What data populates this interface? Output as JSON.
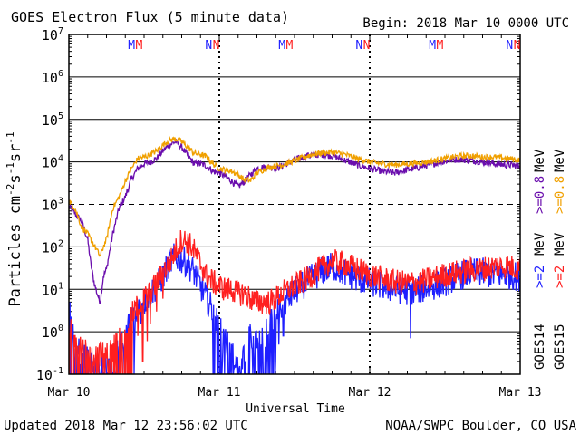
{
  "header": {
    "title": "GOES Electron Flux (5 minute data)",
    "begin": "Begin: 2018 Mar 10 0000 UTC"
  },
  "footer": {
    "updated": "Updated 2018 Mar 12 23:56:02 UTC",
    "credit": "NOAA/SWPC Boulder, CO USA"
  },
  "colors": {
    "goes14_high": "#1f1fff",
    "goes15_high": "#ff1f1f",
    "goes14_low": "#6a0dad",
    "goes15_low": "#f0a000"
  },
  "chart_data": {
    "type": "line",
    "xlabel": "Universal Time",
    "ylabel_parts": {
      "base": "Particles cm",
      "exp1": "-2",
      "mid1": "s",
      "exp2": "-1",
      "mid2": "sr",
      "exp3": "-1"
    },
    "yscale": "log",
    "ylim": [
      0.1,
      10000000
    ],
    "xlim": [
      0,
      72
    ],
    "x_unit": "hours since 2018 Mar 10 0000 UTC",
    "x_ticks": [
      {
        "x": 0,
        "label": "Mar 10"
      },
      {
        "x": 24,
        "label": "Mar 11"
      },
      {
        "x": 48,
        "label": "Mar 12"
      },
      {
        "x": 72,
        "label": "Mar 13"
      }
    ],
    "y_ticks": [
      {
        "exp": -1,
        "base": "10",
        "sup": "-1"
      },
      {
        "exp": 0,
        "base": "10",
        "sup": "0"
      },
      {
        "exp": 1,
        "base": "10",
        "sup": "1"
      },
      {
        "exp": 2,
        "base": "10",
        "sup": "2"
      },
      {
        "exp": 3,
        "base": "10",
        "sup": "3"
      },
      {
        "exp": 4,
        "base": "10",
        "sup": "4"
      },
      {
        "exp": 5,
        "base": "10",
        "sup": "5"
      },
      {
        "exp": 6,
        "base": "10",
        "sup": "6"
      },
      {
        "exp": 7,
        "base": "10",
        "sup": "7"
      }
    ],
    "threshold_line": 1000,
    "marker_rows": [
      {
        "label": "M",
        "color": "#1f1fff",
        "x": [
          10.0,
          34.0,
          58.0
        ]
      },
      {
        "label": "M",
        "color": "#ff1f1f",
        "x": [
          11.2,
          35.2,
          59.2
        ]
      },
      {
        "label": "N",
        "color": "#1f1fff",
        "x": [
          22.3,
          46.3,
          70.3
        ]
      },
      {
        "label": "N",
        "color": "#ff1f1f",
        "x": [
          23.5,
          47.5,
          71.5
        ]
      }
    ],
    "legend": {
      "low": {
        "goes14": ">=0.8",
        "goes15": ">=0.8",
        "unit": "MeV"
      },
      "high": {
        "goes14": ">=2",
        "goes15": ">=2",
        "unit": "MeV"
      },
      "sat": {
        "goes14": "GOES14",
        "goes15": "GOES15"
      }
    },
    "series": [
      {
        "name": "GOES14 >=0.8 MeV",
        "color": "#6a0dad",
        "x": [
          0,
          1,
          2,
          3,
          3.5,
          4,
          4.5,
          5,
          5.5,
          6,
          7,
          8,
          9,
          10,
          11,
          12,
          13,
          14,
          15,
          16,
          17,
          18,
          19,
          20,
          21,
          22,
          23,
          24,
          25,
          26,
          27,
          28,
          29,
          30,
          31,
          32,
          33,
          34,
          35,
          36,
          38,
          40,
          42,
          44,
          46,
          48,
          50,
          52,
          54,
          56,
          58,
          60,
          62,
          64,
          66,
          68,
          70,
          72
        ],
        "y": [
          900,
          600,
          400,
          150,
          40,
          15,
          8,
          5,
          20,
          30,
          200,
          800,
          1500,
          4000,
          7000,
          9000,
          10000,
          12000,
          18000,
          25000,
          30000,
          22000,
          14000,
          9000,
          9000,
          8000,
          6000,
          5500,
          4500,
          3500,
          2600,
          3500,
          5000,
          7000,
          7500,
          7500,
          7000,
          8000,
          9500,
          11000,
          14000,
          15000,
          14000,
          11000,
          8500,
          7000,
          6000,
          5500,
          6500,
          7500,
          9000,
          10500,
          11500,
          11000,
          10000,
          9000,
          8500,
          8000
        ],
        "jitter": 0.08
      },
      {
        "name": "GOES15 >=0.8 MeV",
        "color": "#f0a000",
        "x": [
          0,
          1,
          2,
          3,
          4,
          5,
          5.5,
          6,
          7,
          8,
          9,
          10,
          11,
          12,
          13,
          14,
          15,
          16,
          17,
          18,
          19,
          20,
          21,
          22,
          23,
          24,
          25,
          26,
          27,
          28,
          29,
          30,
          31,
          32,
          33,
          34,
          35,
          36,
          38,
          40,
          42,
          44,
          46,
          48,
          50,
          52,
          54,
          56,
          58,
          60,
          62,
          64,
          66,
          68,
          70,
          72
        ],
        "y": [
          1200,
          800,
          300,
          200,
          110,
          60,
          100,
          150,
          800,
          1500,
          3500,
          7000,
          12000,
          13000,
          15000,
          18000,
          25000,
          32000,
          35000,
          30000,
          22000,
          16000,
          15000,
          13000,
          9000,
          7000,
          6500,
          6000,
          5000,
          3800,
          3600,
          5500,
          6500,
          7500,
          8000,
          8500,
          9500,
          10500,
          14000,
          16000,
          17000,
          15000,
          12000,
          10000,
          9000,
          8500,
          9000,
          9500,
          10500,
          12000,
          13500,
          14000,
          13000,
          13000,
          12000,
          11000
        ],
        "jitter": 0.07
      },
      {
        "name": "GOES14 >=2 MeV",
        "color": "#1f1fff",
        "x": [
          0,
          1,
          2,
          3,
          4,
          5,
          6,
          7,
          8,
          9,
          10,
          11,
          12,
          13,
          14,
          15,
          16,
          17,
          18,
          19,
          20,
          21,
          22,
          23,
          24,
          25,
          26,
          27,
          28,
          29,
          30,
          31,
          32,
          33,
          34,
          35,
          36,
          38,
          40,
          42,
          44,
          46,
          48,
          50,
          52,
          54,
          56,
          58,
          60,
          62,
          64,
          66,
          68,
          70,
          72
        ],
        "y": [
          1.5,
          0.6,
          0.3,
          0.2,
          0.15,
          0.15,
          0.15,
          0.2,
          0.4,
          1,
          2,
          3.5,
          5,
          8,
          12,
          20,
          40,
          60,
          50,
          40,
          25,
          12,
          6,
          3,
          1.5,
          0.6,
          0.3,
          0.2,
          0.3,
          0.8,
          0.5,
          0.6,
          1.5,
          3,
          4,
          6,
          9,
          15,
          25,
          35,
          25,
          18,
          15,
          12,
          10,
          9,
          10,
          12,
          15,
          20,
          25,
          25,
          22,
          22,
          20
        ],
        "jitter": 0.35,
        "spikes": [
          [
            0.2,
            5
          ],
          [
            1,
            0.4
          ],
          [
            2,
            0.1
          ],
          [
            3,
            0.1
          ],
          [
            4,
            0.1
          ],
          [
            5,
            0.1
          ],
          [
            6,
            0.1
          ],
          [
            7,
            0.1
          ],
          [
            7.5,
            0.3
          ],
          [
            8.5,
            0.3
          ],
          [
            10.5,
            0.6
          ],
          [
            11.5,
            1.5
          ],
          [
            23,
            1
          ],
          [
            24.5,
            0.2
          ],
          [
            25.5,
            0.1
          ],
          [
            26,
            0.1
          ],
          [
            27,
            0.1
          ],
          [
            28,
            0.1
          ],
          [
            28.5,
            0.1
          ],
          [
            29.5,
            0.3
          ],
          [
            30.5,
            0.1
          ],
          [
            31,
            0.1
          ],
          [
            32,
            0.1
          ],
          [
            33,
            0.2
          ],
          [
            33.5,
            0.5
          ],
          [
            34.2,
            0.8
          ],
          [
            54.5,
            0.7
          ]
        ]
      },
      {
        "name": "GOES15 >=2 MeV",
        "color": "#ff1f1f",
        "x": [
          0,
          1,
          2,
          3,
          4,
          5,
          6,
          7,
          8,
          9,
          10,
          11,
          12,
          13,
          14,
          15,
          16,
          17,
          18,
          19,
          20,
          21,
          22,
          23,
          24,
          25,
          26,
          27,
          28,
          29,
          30,
          31,
          32,
          33,
          34,
          35,
          36,
          38,
          40,
          42,
          44,
          46,
          48,
          50,
          52,
          54,
          56,
          58,
          60,
          62,
          64,
          66,
          68,
          70,
          72
        ],
        "y": [
          2,
          0.8,
          0.4,
          0.3,
          0.3,
          0.3,
          0.3,
          0.4,
          0.8,
          1.5,
          2.5,
          4,
          6,
          9,
          14,
          25,
          40,
          80,
          150,
          130,
          80,
          40,
          20,
          15,
          12,
          10,
          10,
          8,
          8,
          6,
          5,
          5,
          5,
          6,
          8,
          10,
          12,
          18,
          30,
          45,
          40,
          30,
          22,
          18,
          15,
          14,
          15,
          18,
          22,
          25,
          28,
          30,
          35,
          35,
          30
        ],
        "jitter": 0.3,
        "spikes": [
          [
            0.5,
            3
          ],
          [
            1.5,
            0.1
          ],
          [
            2.5,
            0.1
          ],
          [
            3.5,
            0.1
          ],
          [
            4.5,
            0.1
          ],
          [
            5.5,
            0.1
          ],
          [
            6.5,
            0.1
          ],
          [
            7,
            0.2
          ],
          [
            8,
            0.1
          ],
          [
            9,
            0.3
          ],
          [
            10,
            0.4
          ],
          [
            11,
            0.8
          ],
          [
            11.8,
            0.2
          ],
          [
            12.5,
            0.6
          ],
          [
            13,
            1.5
          ],
          [
            14,
            3
          ],
          [
            15,
            6
          ]
        ]
      }
    ]
  }
}
